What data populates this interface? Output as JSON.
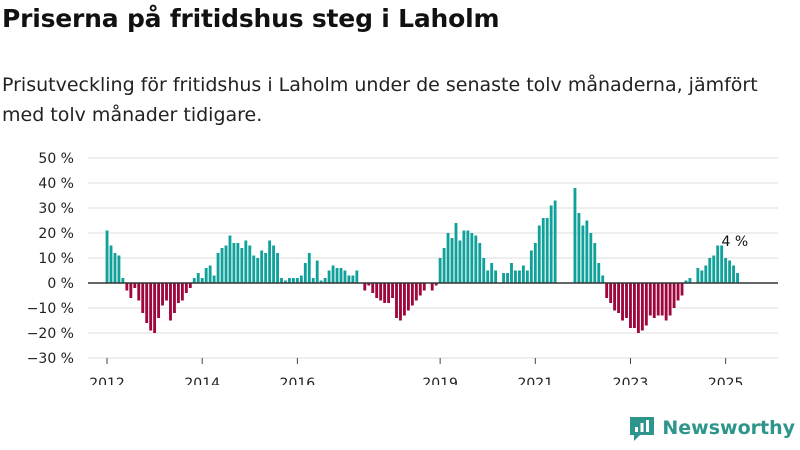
{
  "title": "Priserna på fritidshus steg i Laholm",
  "subtitle": "Prisutveckling för fritidshus i Laholm under de senaste tolv månaderna, jämfört med tolv månader tidigare.",
  "brand": "Newsworthy",
  "colors": {
    "positive": "#10a19a",
    "negative": "#a0073e",
    "grid": "#dddddd",
    "axis": "#333333",
    "brand": "#2e958d"
  },
  "chart_data": {
    "type": "bar",
    "title": "Priserna på fritidshus steg i Laholm",
    "xlabel": "",
    "ylabel": "",
    "unit": "%",
    "ylim": [
      -30,
      50
    ],
    "y_ticks": [
      {
        "value": 50,
        "label": "50 %"
      },
      {
        "value": 40,
        "label": "40 %"
      },
      {
        "value": 30,
        "label": "30 %"
      },
      {
        "value": 20,
        "label": "20 %"
      },
      {
        "value": 10,
        "label": "10 %"
      },
      {
        "value": 0,
        "label": "0 %"
      },
      {
        "value": -10,
        "label": "−10 %"
      },
      {
        "value": -20,
        "label": "−20 %"
      },
      {
        "value": -30,
        "label": "−30 %"
      }
    ],
    "x_start": 2012.0,
    "x_step_years": 0.08333,
    "x_range": [
      2011.6,
      2026.1
    ],
    "x_ticks": [
      "2012",
      "2014",
      "2016",
      "2019",
      "2021",
      "2023",
      "2025"
    ],
    "annotation": {
      "text": "4 %",
      "value": 4
    },
    "values": [
      21,
      15,
      12,
      11,
      2,
      -3,
      -6,
      -2,
      -7,
      -12,
      -16,
      -19,
      -20,
      -14,
      -9,
      -7,
      -15,
      -12,
      -8,
      -7,
      -4,
      -2,
      2,
      4,
      2,
      6,
      7,
      3,
      12,
      14,
      15,
      19,
      16,
      16,
      14,
      17,
      15,
      11,
      10,
      13,
      12,
      17,
      15,
      12,
      2,
      1,
      2,
      2,
      2,
      3,
      8,
      12,
      2,
      9,
      1,
      2,
      5,
      7,
      6,
      6,
      5,
      3,
      3,
      5,
      null,
      -3,
      -1,
      -4,
      -6,
      -7,
      -8,
      -8,
      -6,
      -14,
      -15,
      -13,
      -11,
      -9,
      -7,
      -5,
      -3,
      null,
      -3,
      -1,
      10,
      14,
      20,
      18,
      24,
      17,
      21,
      21,
      20,
      19,
      16,
      10,
      5,
      8,
      5,
      null,
      4,
      4,
      8,
      5,
      5,
      7,
      5,
      13,
      16,
      23,
      26,
      26,
      31,
      33,
      null,
      null,
      null,
      null,
      38,
      28,
      23,
      25,
      20,
      16,
      8,
      3,
      -6,
      -8,
      -11,
      -12,
      -15,
      -14,
      -18,
      -18,
      -20,
      -19,
      -17,
      -13,
      -14,
      -13,
      -13,
      -15,
      -13,
      -10,
      -7,
      -5,
      1,
      2,
      null,
      6,
      5,
      7,
      10,
      11,
      15,
      15,
      10,
      9,
      7,
      4
    ]
  }
}
